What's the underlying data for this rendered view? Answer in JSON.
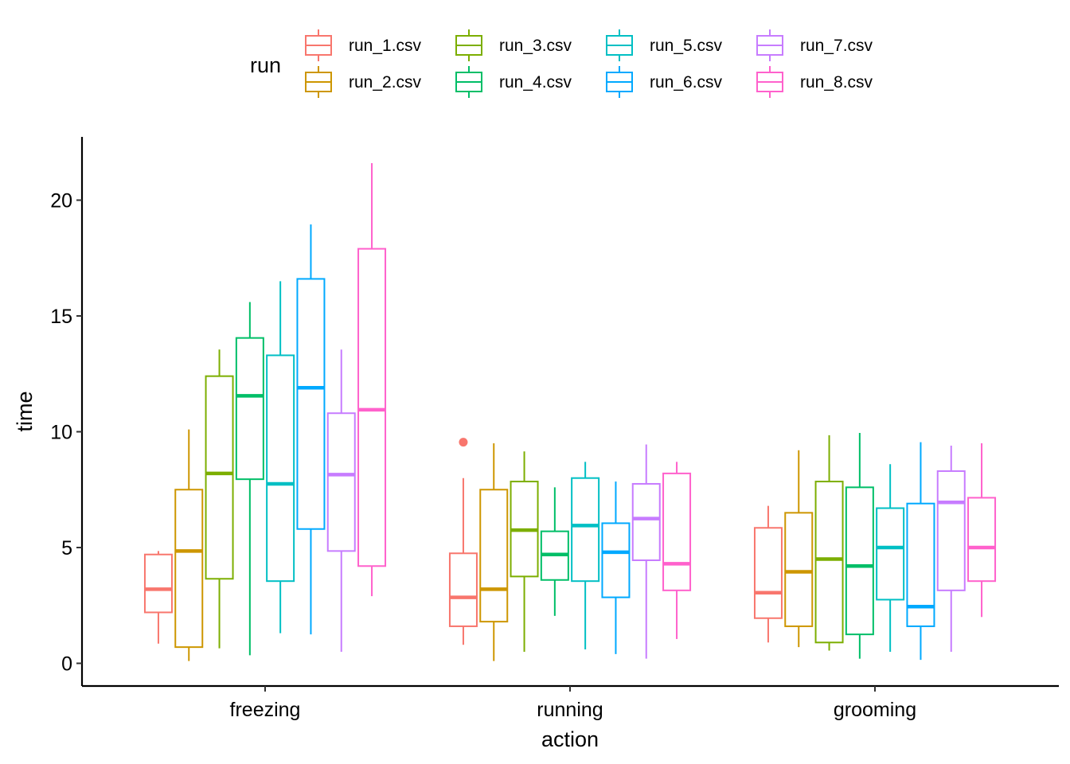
{
  "chart_data": {
    "type": "boxplot",
    "xlabel": "action",
    "ylabel": "time",
    "ylim": [
      -0.9,
      22.5
    ],
    "y_ticks": [
      0,
      5,
      10,
      15,
      20
    ],
    "y_tick_labels": [
      "0",
      "5",
      "10",
      "15",
      "20"
    ],
    "categories": [
      "freezing",
      "running",
      "grooming"
    ],
    "legend": {
      "title": "run",
      "position": "top"
    },
    "series": [
      {
        "name": "run_1.csv",
        "color": "#F8766D",
        "stats": [
          {
            "min": 0.85,
            "q1": 2.2,
            "median": 3.2,
            "q3": 4.7,
            "max": 4.85,
            "outliers": []
          },
          {
            "min": 0.8,
            "q1": 1.6,
            "median": 2.85,
            "q3": 4.75,
            "max": 8.0,
            "outliers": [
              9.55
            ]
          },
          {
            "min": 0.9,
            "q1": 1.95,
            "median": 3.05,
            "q3": 5.85,
            "max": 6.8,
            "outliers": []
          }
        ]
      },
      {
        "name": "run_2.csv",
        "color": "#CD9600",
        "stats": [
          {
            "min": 0.1,
            "q1": 0.7,
            "median": 4.85,
            "q3": 7.5,
            "max": 10.1,
            "outliers": []
          },
          {
            "min": 0.1,
            "q1": 1.8,
            "median": 3.2,
            "q3": 7.5,
            "max": 9.5,
            "outliers": []
          },
          {
            "min": 0.7,
            "q1": 1.6,
            "median": 3.95,
            "q3": 6.5,
            "max": 9.2,
            "outliers": []
          }
        ]
      },
      {
        "name": "run_3.csv",
        "color": "#7CAE00",
        "stats": [
          {
            "min": 0.65,
            "q1": 3.65,
            "median": 8.2,
            "q3": 12.4,
            "max": 13.55,
            "outliers": []
          },
          {
            "min": 0.5,
            "q1": 3.75,
            "median": 5.75,
            "q3": 7.85,
            "max": 9.15,
            "outliers": []
          },
          {
            "min": 0.55,
            "q1": 0.9,
            "median": 4.5,
            "q3": 7.85,
            "max": 9.85,
            "outliers": []
          }
        ]
      },
      {
        "name": "run_4.csv",
        "color": "#00BE67",
        "stats": [
          {
            "min": 0.35,
            "q1": 7.95,
            "median": 11.55,
            "q3": 14.05,
            "max": 15.6,
            "outliers": []
          },
          {
            "min": 2.05,
            "q1": 3.6,
            "median": 4.7,
            "q3": 5.7,
            "max": 7.6,
            "outliers": []
          },
          {
            "min": 0.2,
            "q1": 1.25,
            "median": 4.2,
            "q3": 7.6,
            "max": 9.95,
            "outliers": []
          }
        ]
      },
      {
        "name": "run_5.csv",
        "color": "#00BFC4",
        "stats": [
          {
            "min": 1.3,
            "q1": 3.55,
            "median": 7.75,
            "q3": 13.3,
            "max": 16.5,
            "outliers": []
          },
          {
            "min": 0.6,
            "q1": 3.55,
            "median": 5.95,
            "q3": 8.0,
            "max": 8.7,
            "outliers": []
          },
          {
            "min": 0.5,
            "q1": 2.75,
            "median": 5.0,
            "q3": 6.7,
            "max": 8.6,
            "outliers": []
          }
        ]
      },
      {
        "name": "run_6.csv",
        "color": "#00A9FF",
        "stats": [
          {
            "min": 1.25,
            "q1": 5.8,
            "median": 11.9,
            "q3": 16.6,
            "max": 18.95,
            "outliers": []
          },
          {
            "min": 0.4,
            "q1": 2.85,
            "median": 4.8,
            "q3": 6.05,
            "max": 7.85,
            "outliers": []
          },
          {
            "min": 0.15,
            "q1": 1.6,
            "median": 2.45,
            "q3": 6.9,
            "max": 9.55,
            "outliers": []
          }
        ]
      },
      {
        "name": "run_7.csv",
        "color": "#C77CFF",
        "stats": [
          {
            "min": 0.5,
            "q1": 4.85,
            "median": 8.15,
            "q3": 10.8,
            "max": 13.55,
            "outliers": []
          },
          {
            "min": 0.2,
            "q1": 4.45,
            "median": 6.25,
            "q3": 7.75,
            "max": 9.45,
            "outliers": []
          },
          {
            "min": 0.5,
            "q1": 3.15,
            "median": 6.95,
            "q3": 8.3,
            "max": 9.4,
            "outliers": []
          }
        ]
      },
      {
        "name": "run_8.csv",
        "color": "#FF61CC",
        "stats": [
          {
            "min": 2.9,
            "q1": 4.2,
            "median": 10.95,
            "q3": 17.9,
            "max": 21.6,
            "outliers": []
          },
          {
            "min": 1.05,
            "q1": 3.15,
            "median": 4.3,
            "q3": 8.2,
            "max": 8.7,
            "outliers": []
          },
          {
            "min": 2.0,
            "q1": 3.55,
            "median": 5.0,
            "q3": 7.15,
            "max": 9.5,
            "outliers": []
          }
        ]
      }
    ]
  }
}
